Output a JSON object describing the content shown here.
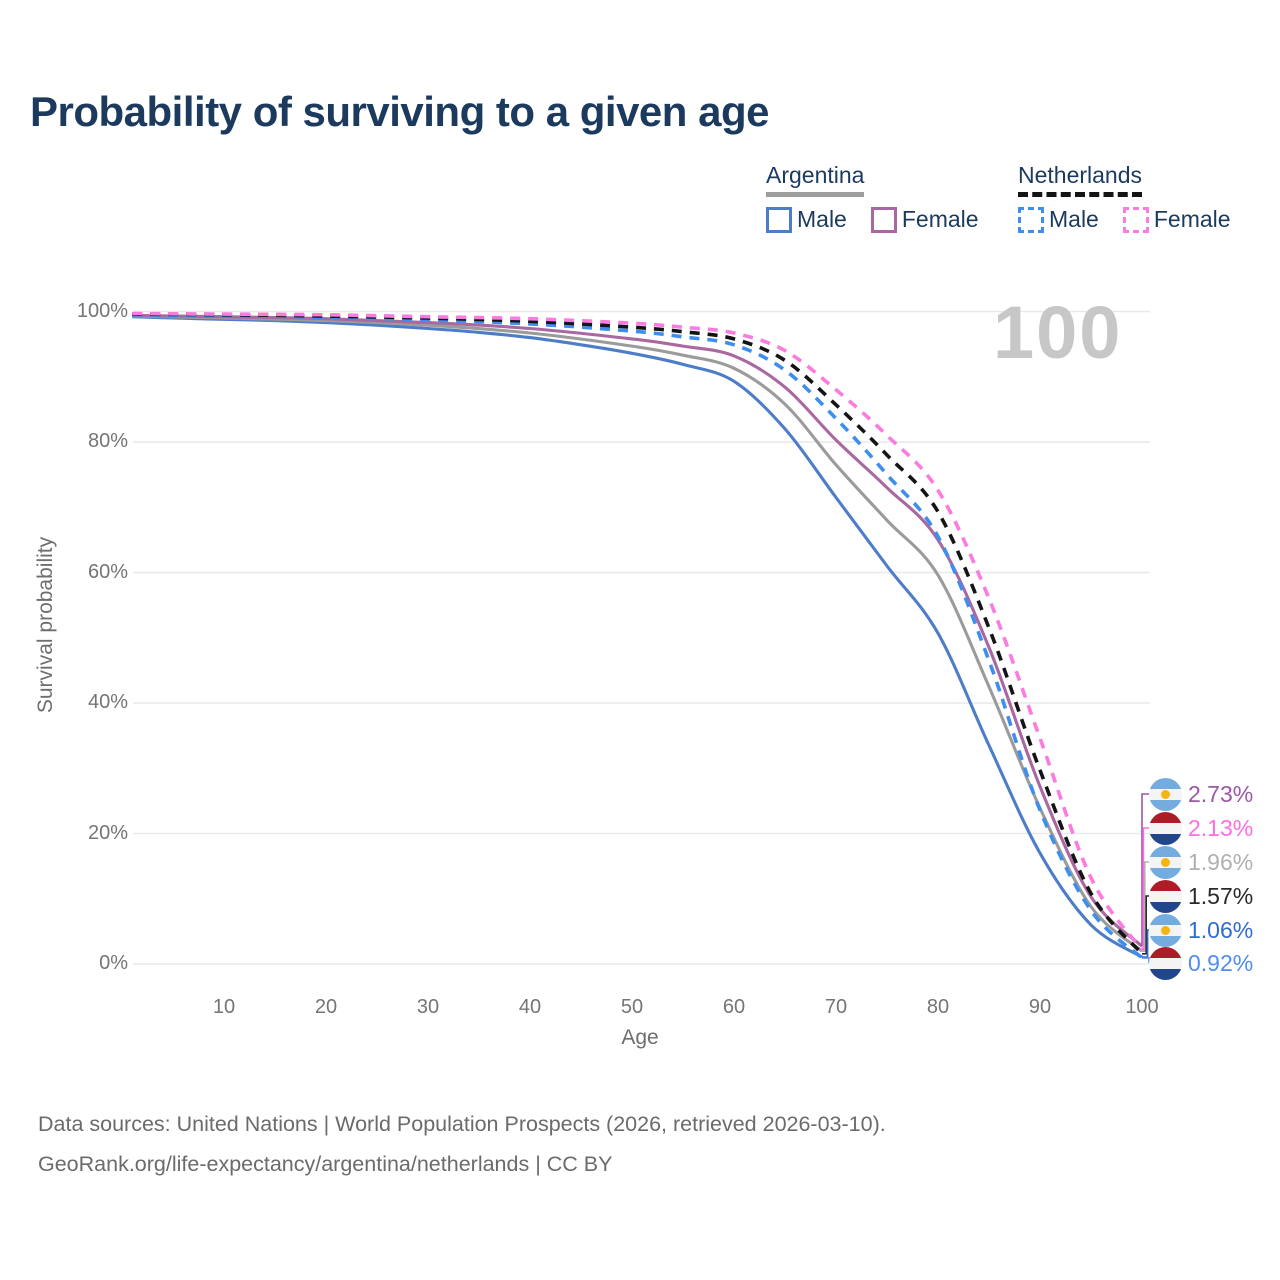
{
  "title": "Probability of surviving to a given age",
  "watermark": "100",
  "axes": {
    "y_label": "Survival probability",
    "x_label": "Age",
    "y_ticks": [
      {
        "value": 0,
        "label": "0%"
      },
      {
        "value": 20,
        "label": "20%"
      },
      {
        "value": 40,
        "label": "40%"
      },
      {
        "value": 60,
        "label": "60%"
      },
      {
        "value": 80,
        "label": "80%"
      },
      {
        "value": 100,
        "label": "100%"
      }
    ],
    "x_ticks": [
      {
        "value": 10,
        "label": "10"
      },
      {
        "value": 20,
        "label": "20"
      },
      {
        "value": 30,
        "label": "30"
      },
      {
        "value": 40,
        "label": "40"
      },
      {
        "value": 50,
        "label": "50"
      },
      {
        "value": 60,
        "label": "60"
      },
      {
        "value": 70,
        "label": "70"
      },
      {
        "value": 80,
        "label": "80"
      },
      {
        "value": 90,
        "label": "90"
      },
      {
        "value": 100,
        "label": "100"
      }
    ]
  },
  "legend": {
    "groups": [
      {
        "country": "Argentina",
        "line_style": "solid",
        "line_color": "#9e9e9e",
        "items": [
          {
            "label": "Male",
            "color": "#4d7dc8",
            "dashed": false
          },
          {
            "label": "Female",
            "color": "#a9689f",
            "dashed": false
          }
        ]
      },
      {
        "country": "Netherlands",
        "line_style": "dashed",
        "line_color": "#141414",
        "items": [
          {
            "label": "Male",
            "color": "#3e8ef0",
            "dashed": true
          },
          {
            "label": "Female",
            "color": "#fb7be0",
            "dashed": true
          }
        ]
      }
    ]
  },
  "chart_data": {
    "type": "line",
    "title": "Probability of surviving to a given age",
    "xlabel": "Age",
    "ylabel": "Survival probability",
    "x_range": [
      0,
      100
    ],
    "y_range_percent": [
      0,
      100
    ],
    "grid": true,
    "legend_position": "top-right",
    "hovered_age": "100",
    "series": [
      {
        "key": "argentina_male",
        "name": "Argentina Male",
        "country": "Argentina",
        "sex": "Male",
        "color": "#4d7dc8",
        "dashed": false,
        "points": [
          [
            1,
            99.2
          ],
          [
            5,
            99.0
          ],
          [
            10,
            98.8
          ],
          [
            15,
            98.6
          ],
          [
            20,
            98.3
          ],
          [
            25,
            97.9
          ],
          [
            30,
            97.4
          ],
          [
            35,
            96.8
          ],
          [
            40,
            96.0
          ],
          [
            45,
            94.9
          ],
          [
            50,
            93.6
          ],
          [
            55,
            91.9
          ],
          [
            60,
            89.3
          ],
          [
            65,
            82.0
          ],
          [
            70,
            71.5
          ],
          [
            75,
            61.0
          ],
          [
            80,
            50.7
          ],
          [
            85,
            33.5
          ],
          [
            90,
            17.0
          ],
          [
            95,
            6.0
          ],
          [
            100,
            1.06
          ]
        ]
      },
      {
        "key": "argentina_total",
        "name": "Argentina",
        "country": "Argentina",
        "sex": "Both",
        "color": "#9b9b9b",
        "dashed": false,
        "points": [
          [
            1,
            99.3
          ],
          [
            10,
            99.0
          ],
          [
            20,
            98.6
          ],
          [
            30,
            97.9
          ],
          [
            40,
            96.7
          ],
          [
            50,
            94.7
          ],
          [
            55,
            93.3
          ],
          [
            60,
            91.3
          ],
          [
            65,
            85.8
          ],
          [
            70,
            76.5
          ],
          [
            75,
            68.0
          ],
          [
            80,
            59.6
          ],
          [
            85,
            42.5
          ],
          [
            90,
            23.9
          ],
          [
            95,
            8.8
          ],
          [
            100,
            1.96
          ]
        ]
      },
      {
        "key": "argentina_female",
        "name": "Argentina Female",
        "country": "Argentina",
        "sex": "Female",
        "color": "#a9689f",
        "dashed": false,
        "points": [
          [
            1,
            99.4
          ],
          [
            10,
            99.2
          ],
          [
            20,
            98.9
          ],
          [
            30,
            98.3
          ],
          [
            40,
            97.4
          ],
          [
            50,
            95.8
          ],
          [
            55,
            94.7
          ],
          [
            60,
            93.2
          ],
          [
            65,
            88.4
          ],
          [
            70,
            80.3
          ],
          [
            75,
            73.0
          ],
          [
            80,
            65.0
          ],
          [
            85,
            48.5
          ],
          [
            90,
            27.2
          ],
          [
            95,
            10.3
          ],
          [
            100,
            2.73
          ]
        ]
      },
      {
        "key": "netherlands_male",
        "name": "Netherlands Male",
        "country": "Netherlands",
        "sex": "Male",
        "color": "#3e8ef0",
        "dashed": true,
        "points": [
          [
            1,
            99.5
          ],
          [
            10,
            99.4
          ],
          [
            20,
            99.1
          ],
          [
            30,
            98.7
          ],
          [
            40,
            98.1
          ],
          [
            50,
            97.0
          ],
          [
            55,
            96.1
          ],
          [
            60,
            94.9
          ],
          [
            65,
            91.0
          ],
          [
            70,
            83.6
          ],
          [
            75,
            75.0
          ],
          [
            80,
            65.5
          ],
          [
            85,
            46.5
          ],
          [
            90,
            23.6
          ],
          [
            95,
            8.2
          ],
          [
            100,
            0.92
          ]
        ]
      },
      {
        "key": "netherlands_total",
        "name": "Netherlands",
        "country": "Netherlands",
        "sex": "Both",
        "color": "#141414",
        "dashed": true,
        "points": [
          [
            1,
            99.6
          ],
          [
            10,
            99.5
          ],
          [
            20,
            99.3
          ],
          [
            30,
            99.0
          ],
          [
            40,
            98.5
          ],
          [
            50,
            97.6
          ],
          [
            55,
            96.9
          ],
          [
            60,
            95.8
          ],
          [
            65,
            92.5
          ],
          [
            70,
            85.7
          ],
          [
            75,
            78.0
          ],
          [
            80,
            69.3
          ],
          [
            85,
            51.5
          ],
          [
            90,
            29.7
          ],
          [
            95,
            10.8
          ],
          [
            100,
            1.57
          ]
        ]
      },
      {
        "key": "netherlands_female",
        "name": "Netherlands Female",
        "country": "Netherlands",
        "sex": "Female",
        "color": "#fb7be0",
        "dashed": true,
        "points": [
          [
            1,
            99.7
          ],
          [
            10,
            99.6
          ],
          [
            20,
            99.5
          ],
          [
            30,
            99.2
          ],
          [
            40,
            98.9
          ],
          [
            50,
            98.2
          ],
          [
            55,
            97.6
          ],
          [
            60,
            96.7
          ],
          [
            65,
            94.0
          ],
          [
            70,
            88.0
          ],
          [
            75,
            81.0
          ],
          [
            80,
            72.6
          ],
          [
            85,
            56.0
          ],
          [
            90,
            34.6
          ],
          [
            95,
            13.2
          ],
          [
            100,
            2.13
          ]
        ]
      }
    ],
    "end_labels": [
      {
        "value": "2.73%",
        "series_key": "argentina_female",
        "flag": "argentina",
        "color": "#9c57a8"
      },
      {
        "value": "2.13%",
        "series_key": "netherlands_female",
        "flag": "netherlands",
        "color": "#ff6ee0"
      },
      {
        "value": "1.96%",
        "series_key": "argentina_total",
        "flag": "argentina",
        "color": "#b0b0b0"
      },
      {
        "value": "1.57%",
        "series_key": "netherlands_total",
        "flag": "netherlands",
        "color": "#2a2a2a"
      },
      {
        "value": "1.06%",
        "series_key": "argentina_male",
        "flag": "argentina",
        "color": "#2f6bd5"
      },
      {
        "value": "0.92%",
        "series_key": "netherlands_male",
        "flag": "netherlands",
        "color": "#4f8df2"
      }
    ]
  },
  "footer": {
    "line1": "Data sources: United Nations | World Population Prospects (2026, retrieved 2026-03-10).",
    "line2": "GeoRank.org/life-expectancy/argentina/netherlands | CC BY"
  }
}
